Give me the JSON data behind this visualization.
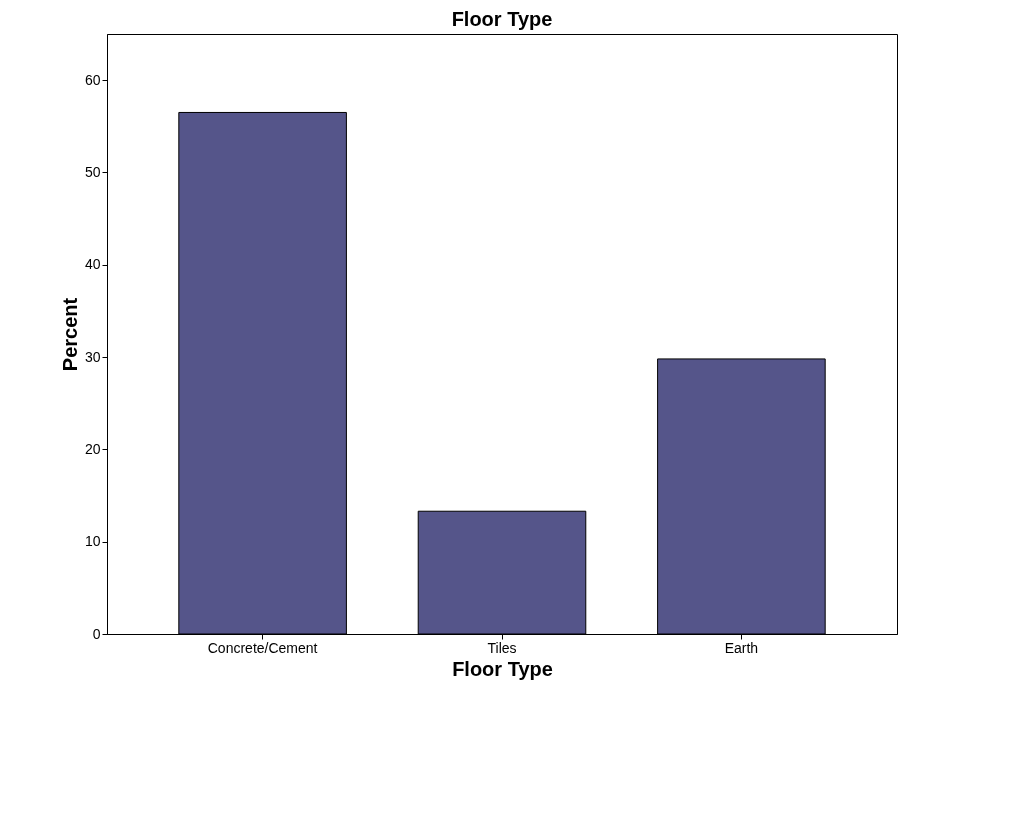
{
  "chart_data": {
    "type": "bar",
    "title": "Floor Type",
    "xlabel": "Floor Type",
    "ylabel": "Percent",
    "categories": [
      "Concrete/Cement",
      "Tiles",
      "Earth"
    ],
    "values": [
      56.5,
      13.3,
      29.8
    ],
    "color": "#55558a",
    "ylim": [
      0,
      65
    ],
    "yticks": [
      0,
      10,
      20,
      30,
      40,
      50,
      60
    ],
    "grid": false
  }
}
